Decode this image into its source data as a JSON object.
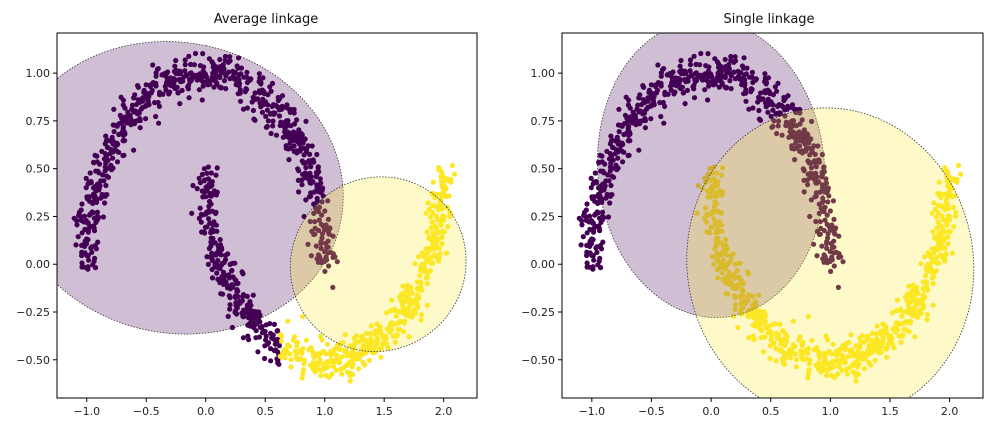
{
  "chart_data": [
    {
      "type": "scatter",
      "title": "Average linkage",
      "xlabel": "",
      "ylabel": "",
      "xlim": [
        -1.25,
        2.28
      ],
      "ylim": [
        -0.7,
        1.21
      ],
      "xticks": [
        "−1.0",
        "−0.5",
        "0.0",
        "0.5",
        "1.0",
        "1.5",
        "2.0"
      ],
      "xtick_values": [
        -1.0,
        -0.5,
        0.0,
        0.5,
        1.0,
        1.5,
        2.0
      ],
      "yticks": [
        "1.00",
        "0.75",
        "0.50",
        "0.25",
        "0.00",
        "−0.25",
        "−0.50"
      ],
      "ytick_values": [
        1.0,
        0.75,
        0.5,
        0.25,
        0.0,
        -0.25,
        -0.5
      ],
      "grid": false,
      "series": [
        {
          "color": "#440154",
          "values": "purple: outer upper moon plus inner lower moon arc x≈0.0–0.9 (points near x 0.6–1.0 of lower moon)"
        },
        {
          "color": "#fde725",
          "values": "yellow: lower moon right part x≈0.6–2.05"
        }
      ],
      "clusters": [
        {
          "color": "#440154",
          "center": [
            -0.25,
            0.4
          ],
          "semi_axes": [
            1.22,
            0.88
          ],
          "angle_deg": 78
        },
        {
          "color": "#fde725",
          "center": [
            1.45,
            0.0
          ],
          "semi_axes": [
            0.75,
            0.45
          ],
          "angle_deg": 40
        }
      ]
    },
    {
      "type": "scatter",
      "title": "Single linkage",
      "xlabel": "",
      "ylabel": "",
      "xlim": [
        -1.25,
        2.28
      ],
      "ylim": [
        -0.7,
        1.21
      ],
      "xticks": [
        "−1.0",
        "−0.5",
        "0.0",
        "0.5",
        "1.0",
        "1.5",
        "2.0"
      ],
      "xtick_values": [
        -1.0,
        -0.5,
        0.0,
        0.5,
        1.0,
        1.5,
        2.0
      ],
      "yticks": [
        "1.00",
        "0.75",
        "0.50",
        "0.25",
        "0.00",
        "−0.25",
        "−0.50"
      ],
      "ytick_values": [
        1.0,
        0.75,
        0.5,
        0.25,
        0.0,
        -0.25,
        -0.5
      ],
      "grid": false,
      "series": [
        {
          "color": "#440154",
          "values": "purple: upper moon"
        },
        {
          "color": "#fde725",
          "values": "yellow: lower moon"
        }
      ],
      "clusters": [
        {
          "color": "#440154",
          "center": [
            0.0,
            0.5
          ],
          "semi_axes": [
            0.95,
            0.78
          ],
          "angle_deg": 5
        },
        {
          "color": "#fde725",
          "center": [
            1.0,
            0.0
          ],
          "semi_axes": [
            1.2,
            0.82
          ],
          "angle_deg": 10
        }
      ]
    }
  ]
}
